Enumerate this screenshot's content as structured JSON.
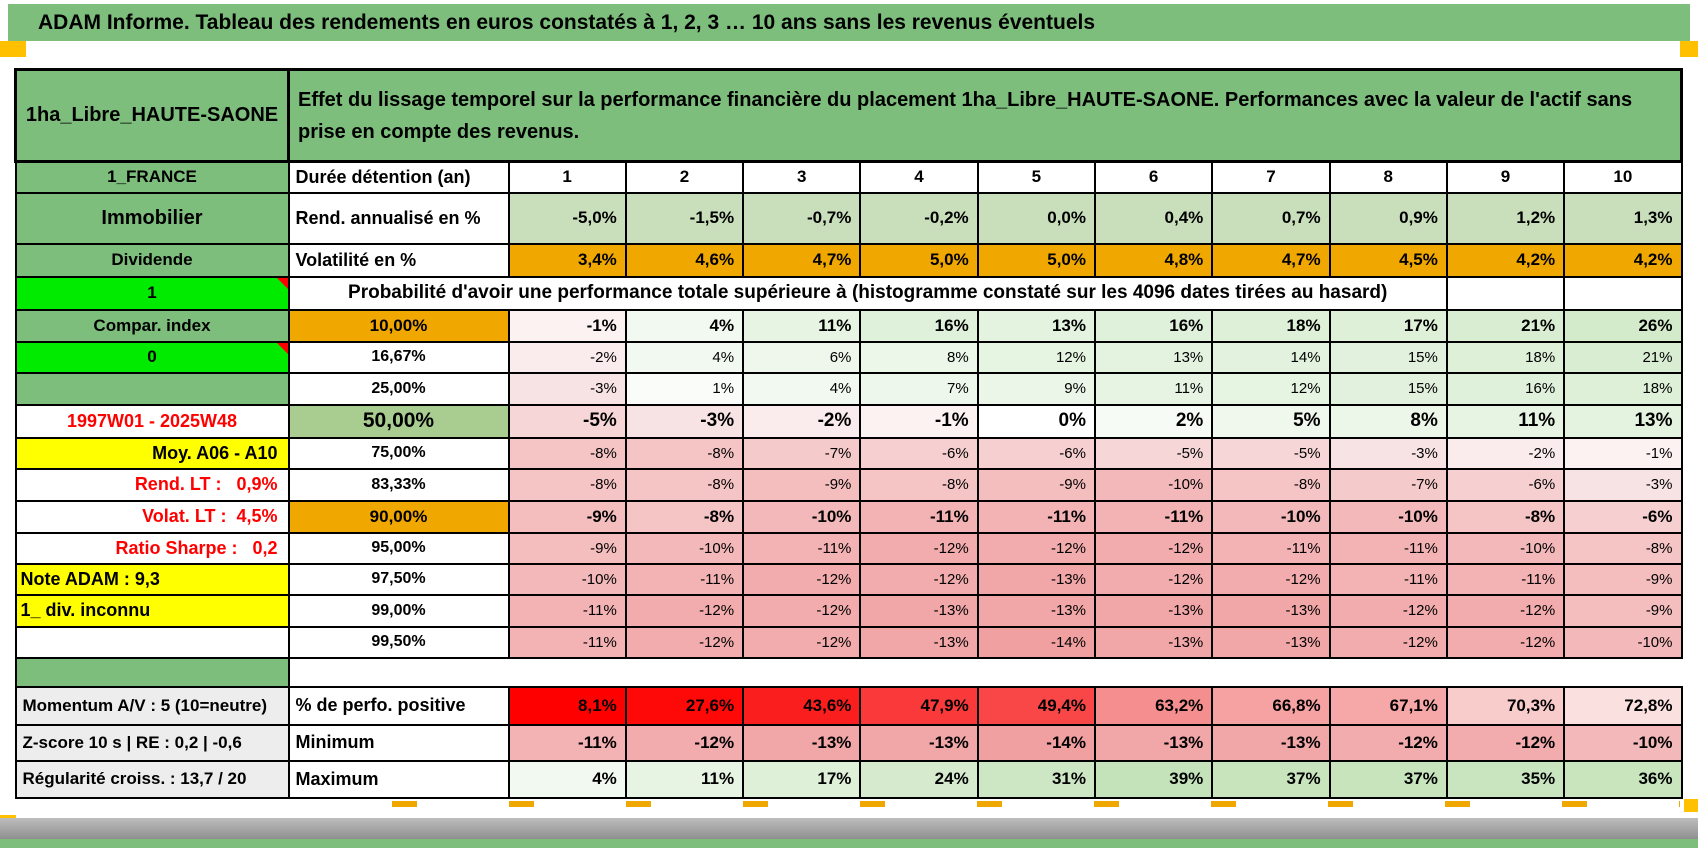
{
  "title": "ADAM Informe. Tableau des rendements en euros constatés à 1, 2, 3 … 10 ans sans les revenus éventuels",
  "header": {
    "placement": "1ha_Libre_HAUTE-SAONE",
    "description": "Effet du lissage temporel sur la performance financière du placement 1ha_Libre_HAUTE-SAONE. Performances avec la valeur de l'actif sans prise en compte des revenus."
  },
  "colors": {
    "band_green": "#7DBE7D",
    "bright_green": "#00EB00",
    "orange": "#F0A800",
    "yellow": "#FFFF00",
    "marker_orange": "#FFC000",
    "red_text": "#FF0000"
  },
  "rows": [
    {
      "key": "years",
      "a": "1_FRANCE",
      "b": "Durée détention (an)",
      "v": [
        "1",
        "2",
        "3",
        "4",
        "5",
        "6",
        "7",
        "8",
        "9",
        "10"
      ]
    },
    {
      "key": "rend",
      "a": "Immobilier",
      "b": "Rend. annualisé en %",
      "v": [
        "-5,0%",
        "-1,5%",
        "-0,7%",
        "-0,2%",
        "0,0%",
        "0,4%",
        "0,7%",
        "0,9%",
        "1,2%",
        "1,3%"
      ],
      "bg": "#C9DEBB"
    },
    {
      "key": "vol",
      "a": "Dividende",
      "b": "Volatilité en %",
      "v": [
        "3,4%",
        "4,6%",
        "4,7%",
        "5,0%",
        "5,0%",
        "4,8%",
        "4,7%",
        "4,5%",
        "4,2%",
        "4,2%"
      ],
      "bg": "#F0A800"
    },
    {
      "key": "proba",
      "a": "1",
      "text": "Probabilité d'avoir une performance totale supérieure à (histogramme constaté sur les 4096 dates tirées au hasard)"
    },
    {
      "key": "p1",
      "a": "Compar. index",
      "b": "10,00%",
      "v": [
        "-1%",
        "4%",
        "11%",
        "16%",
        "13%",
        "16%",
        "18%",
        "17%",
        "21%",
        "26%"
      ],
      "bg": [
        "#FCF2F2",
        "#F2F9F0",
        "#E7F4E3",
        "#E0F1DB",
        "#E4F3E0",
        "#E0F1DB",
        "#DEF0D8",
        "#DFF0D9",
        "#D9EDD2",
        "#D3EACB"
      ]
    },
    {
      "key": "p2",
      "a": "0",
      "b": "16,67%",
      "v": [
        "-2%",
        "4%",
        "6%",
        "8%",
        "12%",
        "13%",
        "14%",
        "15%",
        "18%",
        "21%"
      ],
      "bg": [
        "#FAEBEC",
        "#F2F9F0",
        "#EFF7EC",
        "#ECF6E9",
        "#E6F4E2",
        "#E4F3E0",
        "#E3F2DF",
        "#E2F1DE",
        "#DEF0D8",
        "#D9EDD2"
      ]
    },
    {
      "key": "p3",
      "a": "",
      "b": "25,00%",
      "v": [
        "-3%",
        "1%",
        "4%",
        "7%",
        "9%",
        "11%",
        "12%",
        "15%",
        "16%",
        "18%"
      ],
      "bg": [
        "#F8E3E4",
        "#F9FCF8",
        "#F2F9F0",
        "#EDF7EB",
        "#EBF5E8",
        "#E7F4E3",
        "#E6F4E2",
        "#E2F1DE",
        "#E0F1DB",
        "#DEF0D8"
      ]
    },
    {
      "key": "p4",
      "a": "1997W01 - 2025W48",
      "b": "50,00%",
      "v": [
        "-5%",
        "-3%",
        "-2%",
        "-1%",
        "0%",
        "2%",
        "5%",
        "8%",
        "11%",
        "13%"
      ],
      "bg": [
        "#F6D6D7",
        "#F8E3E4",
        "#FAEBEC",
        "#FCF2F2",
        "#FFFFFF",
        "#F7FBF5",
        "#F0F8EE",
        "#ECF6E9",
        "#E7F4E3",
        "#E4F3E0"
      ]
    },
    {
      "key": "p5",
      "a": "Moy. A06 - A10",
      "b": "75,00%",
      "v": [
        "-8%",
        "-8%",
        "-7%",
        "-6%",
        "-6%",
        "-5%",
        "-5%",
        "-3%",
        "-2%",
        "-1%"
      ],
      "bg": [
        "#F5C4C5",
        "#F5C4C5",
        "#F5CACB",
        "#F6D0D1",
        "#F6D0D1",
        "#F6D6D7",
        "#F6D6D7",
        "#F8E3E4",
        "#FAEBEC",
        "#FCF2F2"
      ]
    },
    {
      "key": "p6",
      "a": "Rend. LT :   0,9%",
      "b": "83,33%",
      "v": [
        "-8%",
        "-8%",
        "-9%",
        "-8%",
        "-9%",
        "-10%",
        "-8%",
        "-7%",
        "-6%",
        "-3%"
      ],
      "bg": [
        "#F5C4C5",
        "#F5C4C5",
        "#F4BEBF",
        "#F5C4C5",
        "#F4BEBF",
        "#F3B8B9",
        "#F5C4C5",
        "#F5CACB",
        "#F6D0D1",
        "#F8E3E4"
      ]
    },
    {
      "key": "p7",
      "a": "Volat. LT :  4,5%",
      "b": "90,00%",
      "v": [
        "-9%",
        "-8%",
        "-10%",
        "-11%",
        "-11%",
        "-11%",
        "-10%",
        "-10%",
        "-8%",
        "-6%"
      ],
      "bg": [
        "#F4BEBF",
        "#F5C4C5",
        "#F3B8B9",
        "#F3B2B3",
        "#F3B2B3",
        "#F3B2B3",
        "#F3B8B9",
        "#F3B8B9",
        "#F5C4C5",
        "#F6D0D1"
      ]
    },
    {
      "key": "p8",
      "a": "Ratio Sharpe :   0,2",
      "b": "95,00%",
      "v": [
        "-9%",
        "-10%",
        "-11%",
        "-12%",
        "-12%",
        "-12%",
        "-11%",
        "-11%",
        "-10%",
        "-8%"
      ],
      "bg": [
        "#F4BEBF",
        "#F3B8B9",
        "#F3B2B3",
        "#F2ACAD",
        "#F2ACAD",
        "#F2ACAD",
        "#F3B2B3",
        "#F3B2B3",
        "#F3B8B9",
        "#F5C4C5"
      ]
    },
    {
      "key": "p9",
      "a": "Note ADAM : 9,3",
      "b": "97,50%",
      "v": [
        "-10%",
        "-11%",
        "-12%",
        "-12%",
        "-13%",
        "-12%",
        "-12%",
        "-11%",
        "-11%",
        "-9%"
      ],
      "bg": [
        "#F3B8B9",
        "#F3B2B3",
        "#F2ACAD",
        "#F2ACAD",
        "#F1A6A7",
        "#F2ACAD",
        "#F2ACAD",
        "#F3B2B3",
        "#F3B2B3",
        "#F4BEBF"
      ]
    },
    {
      "key": "p10",
      "a": "1_ div. inconnu",
      "b": "99,00%",
      "v": [
        "-11%",
        "-12%",
        "-12%",
        "-13%",
        "-13%",
        "-13%",
        "-13%",
        "-12%",
        "-12%",
        "-9%"
      ],
      "bg": [
        "#F3B2B3",
        "#F2ACAD",
        "#F2ACAD",
        "#F1A6A7",
        "#F1A6A7",
        "#F1A6A7",
        "#F1A6A7",
        "#F2ACAD",
        "#F2ACAD",
        "#F4BEBF"
      ]
    },
    {
      "key": "p11",
      "a": "",
      "b": "99,50%",
      "v": [
        "-11%",
        "-12%",
        "-12%",
        "-13%",
        "-14%",
        "-13%",
        "-13%",
        "-12%",
        "-12%",
        "-10%"
      ],
      "bg": [
        "#F3B2B3",
        "#F2ACAD",
        "#F2ACAD",
        "#F1A6A7",
        "#F1A0A1",
        "#F1A6A7",
        "#F1A6A7",
        "#F2ACAD",
        "#F2ACAD",
        "#F3B8B9"
      ]
    },
    {
      "key": "sep"
    },
    {
      "key": "s1",
      "a": "Momentum A/V : 5 (10=neutre)",
      "b": "% de perfo. positive",
      "v": [
        "8,1%",
        "27,6%",
        "43,6%",
        "47,9%",
        "49,4%",
        "63,2%",
        "66,8%",
        "67,1%",
        "70,3%",
        "72,8%"
      ],
      "bg": [
        "#FF0000",
        "#FE0808",
        "#FB1E1E",
        "#FA3A3A",
        "#F94646",
        "#F58E8E",
        "#F6A2A2",
        "#F6A8A8",
        "#F9CCCC",
        "#FBE0E0"
      ]
    },
    {
      "key": "s2",
      "a": "Z-score 10 s | RE : 0,2 | -0,6",
      "b": "Minimum",
      "v": [
        "-11%",
        "-12%",
        "-13%",
        "-13%",
        "-14%",
        "-13%",
        "-13%",
        "-12%",
        "-12%",
        "-10%"
      ],
      "bg": [
        "#F3B2B3",
        "#F2ACAD",
        "#F1A6A7",
        "#F1A6A7",
        "#F1A0A1",
        "#F1A6A7",
        "#F1A6A7",
        "#F2ACAD",
        "#F2ACAD",
        "#F3B8B9"
      ]
    },
    {
      "key": "s3",
      "a": "Régularité croiss. : 13,7 / 20",
      "b": "Maximum",
      "v": [
        "4%",
        "11%",
        "17%",
        "24%",
        "31%",
        "39%",
        "37%",
        "37%",
        "35%",
        "36%"
      ],
      "bg": [
        "#F2F9F0",
        "#E7F4E3",
        "#DFF0D9",
        "#D6EBCE",
        "#CDE7C4",
        "#C5E3BB",
        "#C7E4BD",
        "#C7E4BD",
        "#C9E5BF",
        "#C8E5BE"
      ]
    }
  ]
}
